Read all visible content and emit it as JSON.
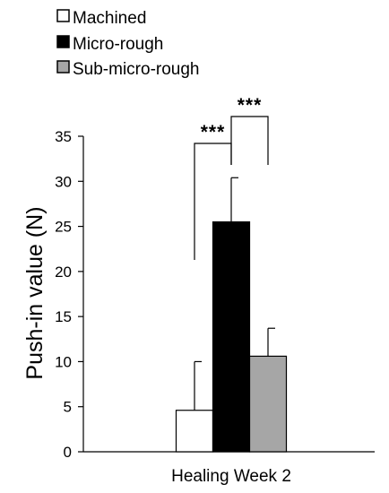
{
  "chart_data": {
    "type": "bar",
    "title": "",
    "xlabel": "",
    "ylabel": "Push-in value (N)",
    "ylim": [
      0,
      35
    ],
    "yticks": [
      0,
      5,
      10,
      15,
      20,
      25,
      30,
      35
    ],
    "grid": false,
    "legend_position": "top-left",
    "categories": [
      "Healing Week 2"
    ],
    "series": [
      {
        "name": "Machined",
        "values": [
          4.6
        ],
        "error": [
          5.4
        ],
        "color": "#ffffff"
      },
      {
        "name": "Micro-rough",
        "values": [
          25.5
        ],
        "error": [
          4.9
        ],
        "color": "#000000"
      },
      {
        "name": "Sub-micro-rough",
        "values": [
          10.6
        ],
        "error": [
          3.1
        ],
        "color": "#a6a6a6"
      }
    ],
    "significance": [
      {
        "between": [
          "Machined",
          "Micro-rough"
        ],
        "label": "***"
      },
      {
        "between": [
          "Micro-rough",
          "Sub-micro-rough"
        ],
        "label": "***"
      }
    ]
  }
}
